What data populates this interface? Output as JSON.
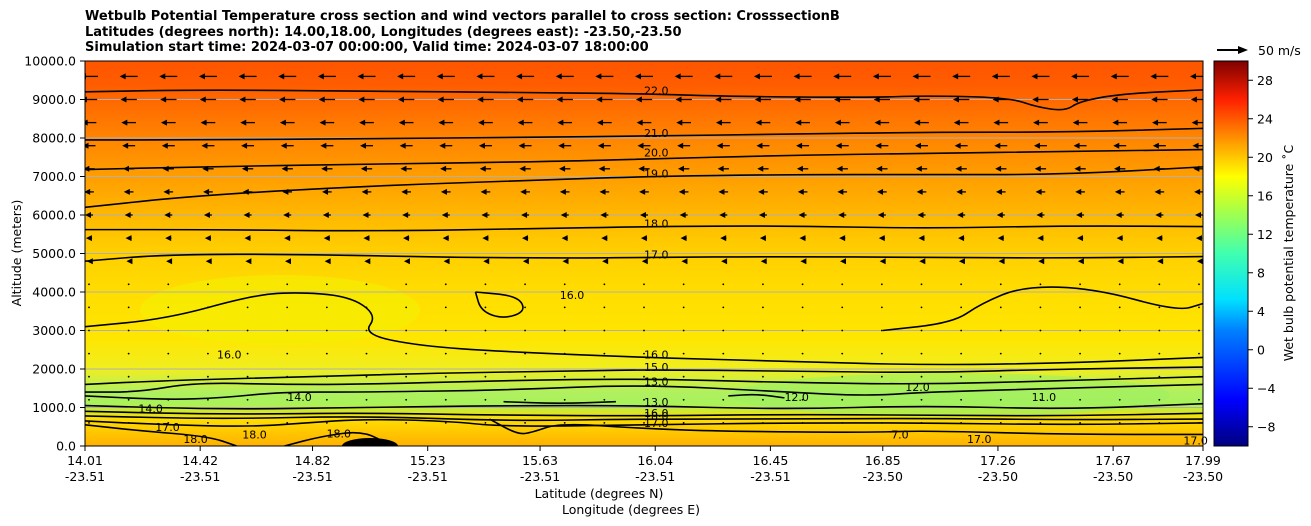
{
  "chart_data": {
    "type": "contour",
    "title_lines": [
      "Wetbulb Potential Temperature cross section and wind vectors parallel to cross section: CrosssectionB",
      "Latitudes (degrees north): 14.00,18.00, Longitudes (degrees east): -23.50,-23.50",
      "Simulation start time: 2024-03-07 00:00:00, Valid time: 2024-03-07 18:00:00"
    ],
    "ylabel": "Altitude (meters)",
    "xlabel_lat": "Latitude (degrees N)",
    "xlabel_lon": "Longitude (degrees E)",
    "ylim": [
      0,
      10000
    ],
    "y_ticks": [
      "0.0",
      "1000.0",
      "2000.0",
      "3000.0",
      "4000.0",
      "5000.0",
      "6000.0",
      "7000.0",
      "8000.0",
      "9000.0",
      "10000.0"
    ],
    "x_range": [
      14.01,
      17.99
    ],
    "x_ticks": [
      {
        "lat": "14.01",
        "lon": "-23.51"
      },
      {
        "lat": "14.42",
        "lon": "-23.51"
      },
      {
        "lat": "14.82",
        "lon": "-23.51"
      },
      {
        "lat": "15.23",
        "lon": "-23.51"
      },
      {
        "lat": "15.63",
        "lon": "-23.51"
      },
      {
        "lat": "16.04",
        "lon": "-23.51"
      },
      {
        "lat": "16.45",
        "lon": "-23.51"
      },
      {
        "lat": "16.85",
        "lon": "-23.50"
      },
      {
        "lat": "17.26",
        "lon": "-23.50"
      },
      {
        "lat": "17.67",
        "lon": "-23.50"
      },
      {
        "lat": "17.99",
        "lon": "-23.50"
      }
    ],
    "colorbar": {
      "label": "Wet bulb potential temperature ˚C",
      "range": [
        -10,
        30
      ],
      "ticks": [
        "−8",
        "−4",
        "0",
        "4",
        "8",
        "12",
        "16",
        "20",
        "24",
        "28"
      ],
      "tick_values": [
        -8,
        -4,
        0,
        4,
        8,
        12,
        16,
        20,
        24,
        28
      ]
    },
    "wind_key": "50 m/s",
    "contour_labels": [
      {
        "text": "22.0",
        "lat": 16.0,
        "alt": 9150
      },
      {
        "text": "21.0",
        "lat": 16.0,
        "alt": 8050
      },
      {
        "text": "20.0",
        "lat": 16.0,
        "alt": 7550
      },
      {
        "text": "19.0",
        "lat": 16.0,
        "alt": 7000
      },
      {
        "text": "18.0",
        "lat": 16.0,
        "alt": 5700
      },
      {
        "text": "17.0",
        "lat": 16.0,
        "alt": 4900
      },
      {
        "text": "16.0",
        "lat": 16.0,
        "alt": 2300
      },
      {
        "text": "15.0",
        "lat": 16.0,
        "alt": 1980
      },
      {
        "text": "13.0",
        "lat": 16.0,
        "alt": 1600
      },
      {
        "text": "13.0",
        "lat": 16.0,
        "alt": 1060
      },
      {
        "text": "16.0",
        "lat": 16.0,
        "alt": 780
      },
      {
        "text": "18.0",
        "lat": 16.0,
        "alt": 700
      },
      {
        "text": "17.0",
        "lat": 16.0,
        "alt": 520
      },
      {
        "text": "12.0",
        "lat": 16.5,
        "alt": 1200
      },
      {
        "text": "16.0",
        "lat": 15.7,
        "alt": 3850
      },
      {
        "text": "16.0",
        "lat": 14.48,
        "alt": 2300
      },
      {
        "text": "14.0",
        "lat": 14.2,
        "alt": 900
      },
      {
        "text": "14.0",
        "lat": 14.73,
        "alt": 1200
      },
      {
        "text": "17.0",
        "lat": 14.26,
        "alt": 420
      },
      {
        "text": "18.0",
        "lat": 14.36,
        "alt": 100
      },
      {
        "text": "18.0",
        "lat": 14.57,
        "alt": 220
      },
      {
        "text": "18.0",
        "lat": 14.87,
        "alt": 250
      },
      {
        "text": "12.0",
        "lat": 16.93,
        "alt": 1450
      },
      {
        "text": "11.0",
        "lat": 17.38,
        "alt": 1200
      },
      {
        "text": "7.0",
        "lat": 16.88,
        "alt": 220
      },
      {
        "text": "17.0",
        "lat": 17.15,
        "alt": 100
      },
      {
        "text": "17.0",
        "lat": 17.92,
        "alt": 60
      }
    ],
    "contour_lines": [
      {
        "level": 22,
        "points": [
          [
            14.01,
            9200
          ],
          [
            14.4,
            9250
          ],
          [
            15.0,
            9220
          ],
          [
            15.6,
            9180
          ],
          [
            16.0,
            9150
          ],
          [
            16.3,
            9080
          ],
          [
            16.8,
            9050
          ],
          [
            17.0,
            9100
          ],
          [
            17.3,
            9050
          ],
          [
            17.4,
            8800
          ],
          [
            17.5,
            8700
          ],
          [
            17.55,
            8950
          ],
          [
            17.7,
            9150
          ],
          [
            17.99,
            9250
          ]
        ]
      },
      {
        "level": 21,
        "points": [
          [
            14.01,
            7950
          ],
          [
            14.4,
            7950
          ],
          [
            15.0,
            7980
          ],
          [
            15.6,
            8020
          ],
          [
            16.0,
            8050
          ],
          [
            16.5,
            8100
          ],
          [
            17.0,
            8150
          ],
          [
            17.5,
            8150
          ],
          [
            17.99,
            8250
          ]
        ]
      },
      {
        "level": 20,
        "points": [
          [
            14.01,
            7180
          ],
          [
            14.4,
            7250
          ],
          [
            15.0,
            7320
          ],
          [
            15.6,
            7380
          ],
          [
            16.0,
            7450
          ],
          [
            16.5,
            7550
          ],
          [
            17.0,
            7600
          ],
          [
            17.5,
            7650
          ],
          [
            17.99,
            7700
          ]
        ]
      },
      {
        "level": 19,
        "points": [
          [
            14.01,
            6200
          ],
          [
            14.4,
            6500
          ],
          [
            15.0,
            6750
          ],
          [
            15.6,
            6900
          ],
          [
            16.0,
            7000
          ],
          [
            16.5,
            7050
          ],
          [
            17.0,
            7050
          ],
          [
            17.5,
            7050
          ],
          [
            17.99,
            7250
          ]
        ]
      },
      {
        "level": 18,
        "points": [
          [
            14.01,
            5620
          ],
          [
            14.5,
            5620
          ],
          [
            15.0,
            5580
          ],
          [
            15.6,
            5640
          ],
          [
            16.0,
            5700
          ],
          [
            16.5,
            5720
          ],
          [
            17.0,
            5650
          ],
          [
            17.5,
            5720
          ],
          [
            17.99,
            5700
          ]
        ]
      },
      {
        "level": 17,
        "points": [
          [
            14.01,
            4800
          ],
          [
            14.3,
            4980
          ],
          [
            14.8,
            4980
          ],
          [
            15.3,
            4900
          ],
          [
            15.8,
            4880
          ],
          [
            16.0,
            4900
          ],
          [
            16.5,
            4920
          ],
          [
            17.0,
            4900
          ],
          [
            17.5,
            4880
          ],
          [
            17.99,
            4920
          ]
        ]
      },
      {
        "level": 16,
        "points": [
          [
            14.01,
            3100
          ],
          [
            14.3,
            3300
          ],
          [
            14.6,
            3900
          ],
          [
            14.75,
            4000
          ],
          [
            14.95,
            3900
          ],
          [
            15.05,
            3400
          ],
          [
            15.0,
            2900
          ],
          [
            15.2,
            2600
          ],
          [
            15.5,
            2450
          ],
          [
            16.0,
            2300
          ],
          [
            16.5,
            2200
          ],
          [
            17.0,
            2100
          ],
          [
            17.5,
            2150
          ],
          [
            17.99,
            2300
          ]
        ]
      },
      {
        "level": 16,
        "points": [
          [
            15.4,
            4000
          ],
          [
            15.55,
            3900
          ],
          [
            15.58,
            3500
          ],
          [
            15.5,
            3300
          ],
          [
            15.42,
            3500
          ],
          [
            15.4,
            4000
          ]
        ]
      },
      {
        "level": 16,
        "points": [
          [
            16.85,
            3000
          ],
          [
            17.1,
            3200
          ],
          [
            17.2,
            3700
          ],
          [
            17.35,
            4150
          ],
          [
            17.6,
            4100
          ],
          [
            17.9,
            3500
          ],
          [
            17.99,
            3700
          ]
        ]
      },
      {
        "level": 15,
        "points": [
          [
            14.01,
            1600
          ],
          [
            14.3,
            1700
          ],
          [
            14.8,
            1800
          ],
          [
            15.3,
            1900
          ],
          [
            15.8,
            1950
          ],
          [
            16.0,
            1980
          ],
          [
            16.5,
            1950
          ],
          [
            17.0,
            1900
          ],
          [
            17.5,
            2000
          ],
          [
            17.99,
            2050
          ]
        ]
      },
      {
        "level": 14,
        "points": [
          [
            14.01,
            1400
          ],
          [
            14.2,
            1400
          ],
          [
            14.4,
            1650
          ],
          [
            14.7,
            1600
          ],
          [
            15.0,
            1600
          ],
          [
            15.5,
            1700
          ],
          [
            16.0,
            1750
          ],
          [
            16.5,
            1650
          ],
          [
            17.0,
            1600
          ],
          [
            17.5,
            1700
          ],
          [
            17.99,
            1800
          ]
        ]
      },
      {
        "level": 13,
        "points": [
          [
            14.01,
            1300
          ],
          [
            14.3,
            1200
          ],
          [
            14.5,
            1250
          ],
          [
            14.7,
            1400
          ],
          [
            15.0,
            1400
          ],
          [
            15.5,
            1450
          ],
          [
            16.0,
            1600
          ],
          [
            16.5,
            1400
          ],
          [
            16.8,
            1300
          ],
          [
            17.0,
            1400
          ],
          [
            17.5,
            1500
          ],
          [
            17.99,
            1600
          ]
        ]
      },
      {
        "level": 12,
        "points": [
          [
            15.5,
            1150
          ],
          [
            15.7,
            1100
          ],
          [
            15.9,
            1150
          ]
        ]
      },
      {
        "level": 12,
        "points": [
          [
            16.3,
            1300
          ],
          [
            16.4,
            1350
          ],
          [
            16.5,
            1250
          ]
        ]
      },
      {
        "level": 11,
        "points": [
          [
            14.01,
            1050
          ],
          [
            14.5,
            950
          ],
          [
            15.0,
            1000
          ],
          [
            15.5,
            1050
          ],
          [
            16.0,
            1050
          ],
          [
            16.5,
            950
          ],
          [
            17.0,
            1050
          ],
          [
            17.5,
            950
          ],
          [
            17.99,
            1100
          ]
        ]
      },
      {
        "level": 12,
        "points": [
          [
            14.01,
            900
          ],
          [
            14.5,
            820
          ],
          [
            15.0,
            860
          ],
          [
            15.5,
            800
          ],
          [
            16.0,
            780
          ],
          [
            16.5,
            820
          ],
          [
            17.0,
            800
          ],
          [
            17.5,
            780
          ],
          [
            17.99,
            850
          ]
        ]
      },
      {
        "level": 13,
        "points": [
          [
            14.01,
            780
          ],
          [
            14.5,
            700
          ],
          [
            15.0,
            780
          ],
          [
            15.5,
            650
          ],
          [
            16.0,
            700
          ],
          [
            16.5,
            700
          ],
          [
            17.0,
            720
          ],
          [
            17.5,
            680
          ],
          [
            17.99,
            700
          ]
        ]
      },
      {
        "level": 16,
        "points": [
          [
            14.01,
            650
          ],
          [
            14.3,
            550
          ],
          [
            14.6,
            500
          ],
          [
            14.8,
            600
          ],
          [
            15.0,
            700
          ],
          [
            15.3,
            650
          ],
          [
            15.5,
            500
          ],
          [
            16.0,
            550
          ],
          [
            16.5,
            600
          ],
          [
            17.0,
            600
          ],
          [
            17.5,
            550
          ],
          [
            17.99,
            600
          ]
        ]
      },
      {
        "level": 17,
        "points": [
          [
            14.01,
            550
          ],
          [
            14.2,
            400
          ],
          [
            14.45,
            250
          ],
          [
            14.55,
            0
          ]
        ]
      },
      {
        "level": 17,
        "points": [
          [
            15.45,
            700
          ],
          [
            15.55,
            300
          ],
          [
            15.6,
            350
          ],
          [
            15.7,
            600
          ],
          [
            16.0,
            450
          ],
          [
            16.3,
            380
          ],
          [
            16.8,
            350
          ],
          [
            17.0,
            400
          ],
          [
            17.5,
            300
          ],
          [
            17.99,
            300
          ]
        ]
      },
      {
        "level": 18,
        "points": [
          [
            14.72,
            0
          ],
          [
            14.85,
            250
          ],
          [
            15.0,
            400
          ],
          [
            15.1,
            0
          ]
        ]
      }
    ]
  }
}
